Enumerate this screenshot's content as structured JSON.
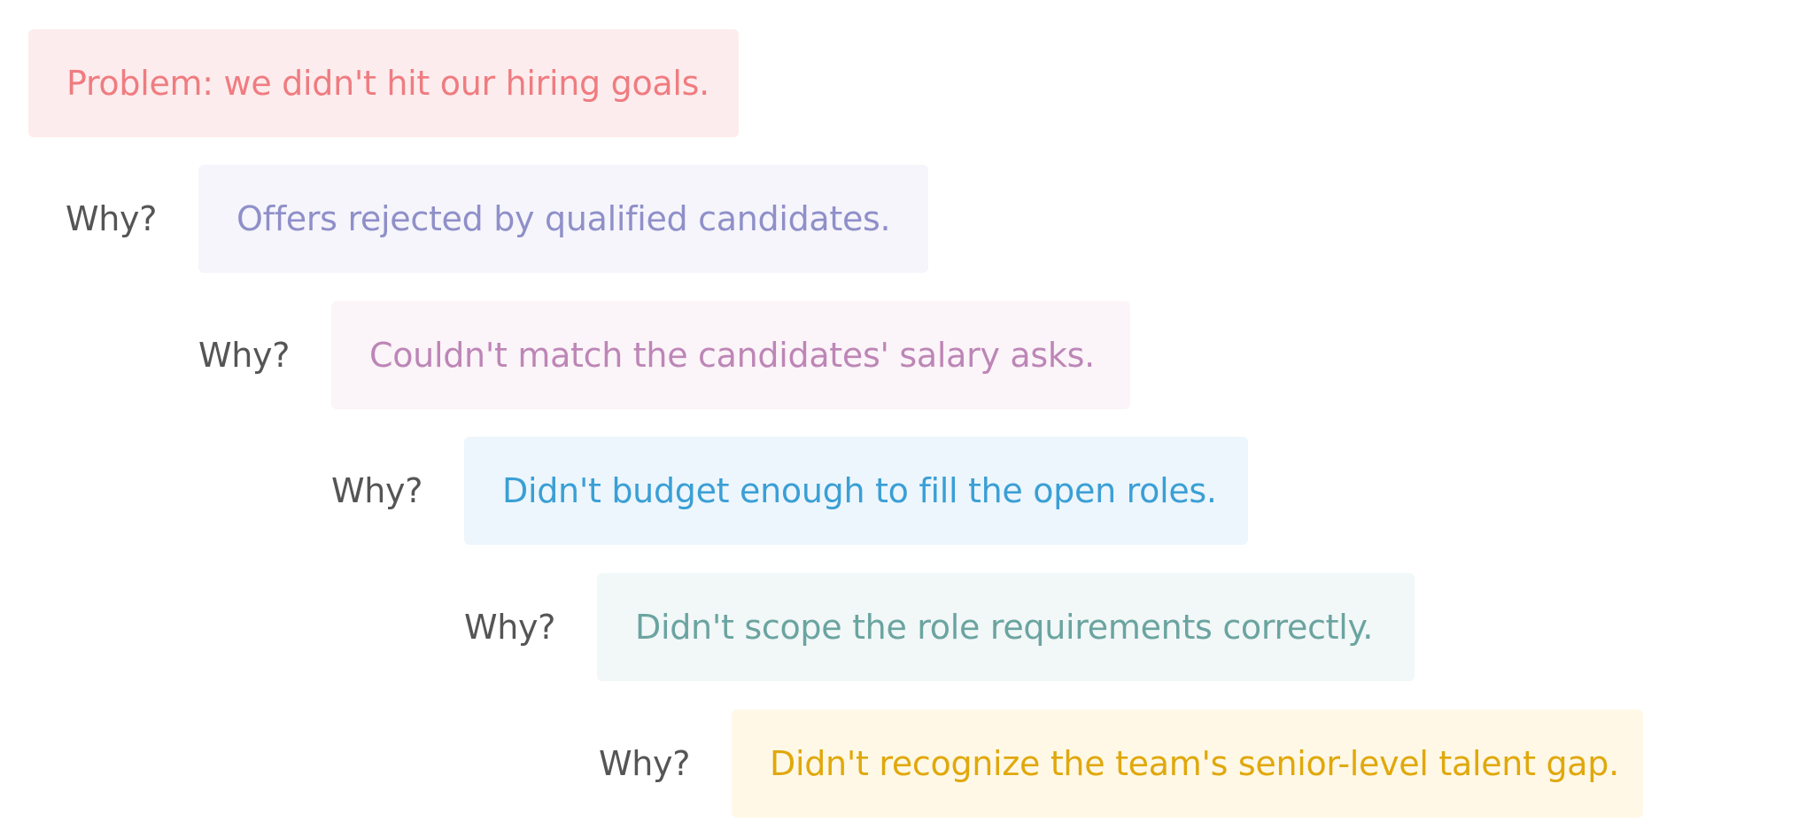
{
  "problem": {
    "text": "Problem: we didn't hit our hiring goals.",
    "background": "#fdeced",
    "color": "#ef7c80"
  },
  "why_label": "Why?",
  "steps": [
    {
      "why": "Why?",
      "text": "Offers rejected by qualified candidates.",
      "background": "#f5f5fb",
      "color": "#8f8fc9"
    },
    {
      "why": "Why?",
      "text": "Couldn't match the candidates' salary asks.",
      "background": "#fbf4f8",
      "color": "#bd86b7"
    },
    {
      "why": "Why?",
      "text": "Didn't budget enough to fill the open roles.",
      "background": "#edf6fc",
      "color": "#3a9fd5"
    },
    {
      "why": "Why?",
      "text": "Didn't scope the role requirements correctly.",
      "background": "#f2f7f7",
      "color": "#6aa4a0"
    },
    {
      "why": "Why?",
      "text": "Didn't recognize the team's senior-level talent gap.",
      "background": "#fff8e6",
      "color": "#e0a80c"
    }
  ]
}
